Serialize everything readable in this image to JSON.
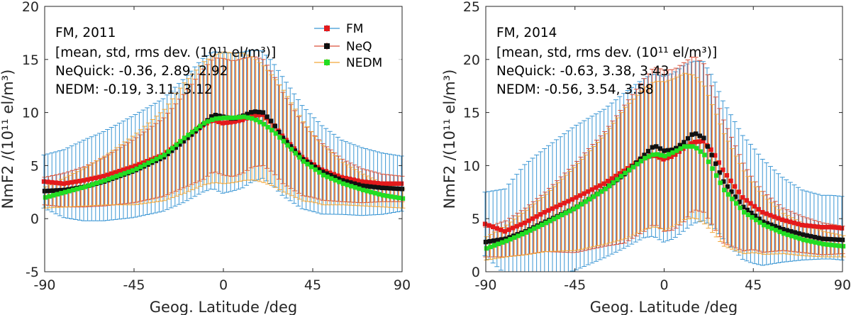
{
  "colors": {
    "FM": "#e31a1c",
    "NeQ": "#111111",
    "NEDM": "#22dd22",
    "FM_err": "#3a96d4",
    "NeQ_err": "#d9523a",
    "NEDM_err": "#f2a73a"
  },
  "chart_data": [
    {
      "type": "line",
      "title": "FM, 2011",
      "xlabel": "Geog. Latitude /deg",
      "ylabel": "NmF2 /(10¹¹ el/m³)",
      "xlim": [
        -90,
        90
      ],
      "ylim": [
        -5,
        20
      ],
      "xticks": [
        -90,
        -45,
        0,
        45,
        90
      ],
      "yticks": [
        -5,
        0,
        5,
        10,
        15,
        20
      ],
      "xtick_labels": [
        "-90",
        "-45",
        "0",
        "45",
        "90"
      ],
      "ytick_labels": [
        "-5",
        "0",
        "5",
        "10",
        "15",
        "20"
      ],
      "annotation": {
        "header": "[mean, std, rms dev. (10¹¹ el/m³)]",
        "neq": "NeQuick: -0.36, 2.89, 2.92",
        "nedm": "NEDM: -0.19, 3.11, 3.12"
      },
      "legend": [
        "FM",
        "NeQ",
        "NEDM"
      ],
      "legend_position": "top-right",
      "series_knots": {
        "FM": {
          "lat": [
            -90,
            -80,
            -70,
            -60,
            -45,
            -30,
            -20,
            -10,
            -5,
            0,
            5,
            10,
            15,
            20,
            25,
            30,
            40,
            50,
            60,
            70,
            80,
            90
          ],
          "value": [
            3.5,
            3.3,
            3.6,
            4.0,
            4.9,
            6.0,
            7.3,
            8.8,
            9.3,
            9.0,
            9.1,
            9.3,
            9.7,
            9.8,
            9.0,
            7.8,
            5.8,
            4.6,
            3.9,
            3.5,
            3.3,
            3.3
          ]
        },
        "NeQ": {
          "lat": [
            -90,
            -80,
            -70,
            -60,
            -45,
            -30,
            -20,
            -10,
            -5,
            0,
            5,
            10,
            15,
            20,
            25,
            30,
            40,
            50,
            60,
            70,
            80,
            90
          ],
          "value": [
            2.6,
            2.7,
            3.0,
            3.5,
            4.5,
            5.8,
            7.3,
            8.9,
            9.8,
            9.6,
            9.4,
            9.7,
            10.1,
            10.0,
            9.0,
            7.6,
            5.6,
            4.4,
            3.6,
            3.1,
            2.9,
            2.8
          ]
        },
        "NEDM": {
          "lat": [
            -90,
            -80,
            -70,
            -60,
            -45,
            -30,
            -20,
            -10,
            -5,
            0,
            5,
            10,
            15,
            20,
            25,
            30,
            40,
            50,
            60,
            70,
            80,
            90
          ],
          "value": [
            2.0,
            2.5,
            3.0,
            3.6,
            4.6,
            6.0,
            7.6,
            9.0,
            9.4,
            9.5,
            9.5,
            9.6,
            9.4,
            8.9,
            8.2,
            7.3,
            5.4,
            4.1,
            3.3,
            2.7,
            2.2,
            1.9
          ]
        }
      },
      "std": {
        "lat": [
          -90,
          -80,
          -70,
          -60,
          -45,
          -30,
          -20,
          -10,
          0,
          10,
          20,
          30,
          45,
          60,
          70,
          80,
          90
        ],
        "FM": [
          2.5,
          3.2,
          3.8,
          4.2,
          4.8,
          5.3,
          5.8,
          6.3,
          6.6,
          6.4,
          6.0,
          5.6,
          4.5,
          3.5,
          3.2,
          2.9,
          2.6
        ],
        "NeQ": [
          1.3,
          1.6,
          1.9,
          2.3,
          3.0,
          3.7,
          4.4,
          5.2,
          5.5,
          5.4,
          5.0,
          4.3,
          3.0,
          2.0,
          1.6,
          1.3,
          1.2
        ],
        "NEDM": [
          1.0,
          1.4,
          1.8,
          2.3,
          3.3,
          4.3,
          5.2,
          5.8,
          6.2,
          6.0,
          5.5,
          4.8,
          3.2,
          2.0,
          1.5,
          1.1,
          0.9
        ]
      }
    },
    {
      "type": "line",
      "title": "FM, 2014",
      "xlabel": "Geog. Latitude /deg",
      "ylabel": "NmF2 /(10¹¹ el/m³)",
      "xlim": [
        -90,
        90
      ],
      "ylim": [
        0,
        25
      ],
      "xticks": [
        -90,
        -45,
        0,
        45,
        90
      ],
      "yticks": [
        0,
        5,
        10,
        15,
        20,
        25
      ],
      "xtick_labels": [
        "-90",
        "-45",
        "0",
        "45",
        "90"
      ],
      "ytick_labels": [
        "0",
        "5",
        "10",
        "15",
        "20",
        "25"
      ],
      "annotation": {
        "header": "[mean, std, rms dev. (10¹¹ el/m³)]",
        "neq": "NeQuick: -0.63, 3.38, 3.43",
        "nedm": "NEDM: -0.56, 3.54, 3.58"
      },
      "series_knots": {
        "FM": {
          "lat": [
            -90,
            -80,
            -70,
            -60,
            -45,
            -30,
            -20,
            -10,
            -5,
            0,
            5,
            10,
            15,
            20,
            25,
            30,
            40,
            50,
            60,
            70,
            80,
            85,
            90
          ],
          "value": [
            4.5,
            3.8,
            4.6,
            5.6,
            6.9,
            8.3,
            9.5,
            10.7,
            11.0,
            10.6,
            10.9,
            11.6,
            12.2,
            12.3,
            11.3,
            9.6,
            7.0,
            5.6,
            4.9,
            4.4,
            4.2,
            4.2,
            4.1
          ]
        },
        "NeQ": {
          "lat": [
            -90,
            -80,
            -70,
            -60,
            -45,
            -30,
            -20,
            -10,
            -5,
            0,
            5,
            10,
            15,
            20,
            25,
            30,
            40,
            50,
            60,
            70,
            80,
            90
          ],
          "value": [
            2.8,
            3.1,
            3.8,
            4.7,
            6.0,
            7.8,
            9.2,
            11.0,
            11.9,
            11.4,
            11.5,
            12.2,
            13.1,
            12.6,
            10.6,
            8.5,
            6.1,
            4.7,
            4.0,
            3.5,
            3.1,
            3.0
          ]
        },
        "NEDM": {
          "lat": [
            -90,
            -80,
            -70,
            -60,
            -45,
            -30,
            -20,
            -10,
            -5,
            0,
            5,
            10,
            15,
            20,
            25,
            30,
            40,
            50,
            60,
            70,
            80,
            90
          ],
          "value": [
            2.2,
            2.9,
            3.7,
            4.6,
            6.0,
            7.8,
            9.3,
            10.7,
            11.1,
            10.9,
            11.3,
            11.8,
            11.8,
            11.0,
            9.4,
            7.7,
            5.6,
            4.4,
            3.6,
            3.0,
            2.6,
            2.4
          ]
        }
      },
      "std": {
        "lat": [
          -90,
          -80,
          -70,
          -60,
          -45,
          -30,
          -20,
          -10,
          0,
          10,
          20,
          30,
          45,
          60,
          70,
          80,
          90
        ],
        "FM": [
          3.0,
          4.0,
          5.5,
          6.0,
          6.8,
          7.0,
          7.3,
          7.5,
          7.8,
          7.8,
          7.5,
          6.5,
          5.5,
          4.0,
          3.3,
          3.0,
          3.0
        ],
        "NeQ": [
          1.4,
          1.7,
          2.2,
          2.8,
          4.2,
          5.4,
          6.5,
          7.2,
          7.6,
          7.5,
          7.0,
          5.8,
          3.3,
          2.0,
          1.7,
          1.5,
          1.3
        ],
        "NEDM": [
          1.1,
          1.5,
          2.1,
          2.7,
          4.0,
          5.2,
          6.2,
          6.7,
          7.0,
          6.9,
          6.5,
          5.3,
          3.2,
          1.9,
          1.5,
          1.2,
          1.0
        ]
      }
    }
  ]
}
